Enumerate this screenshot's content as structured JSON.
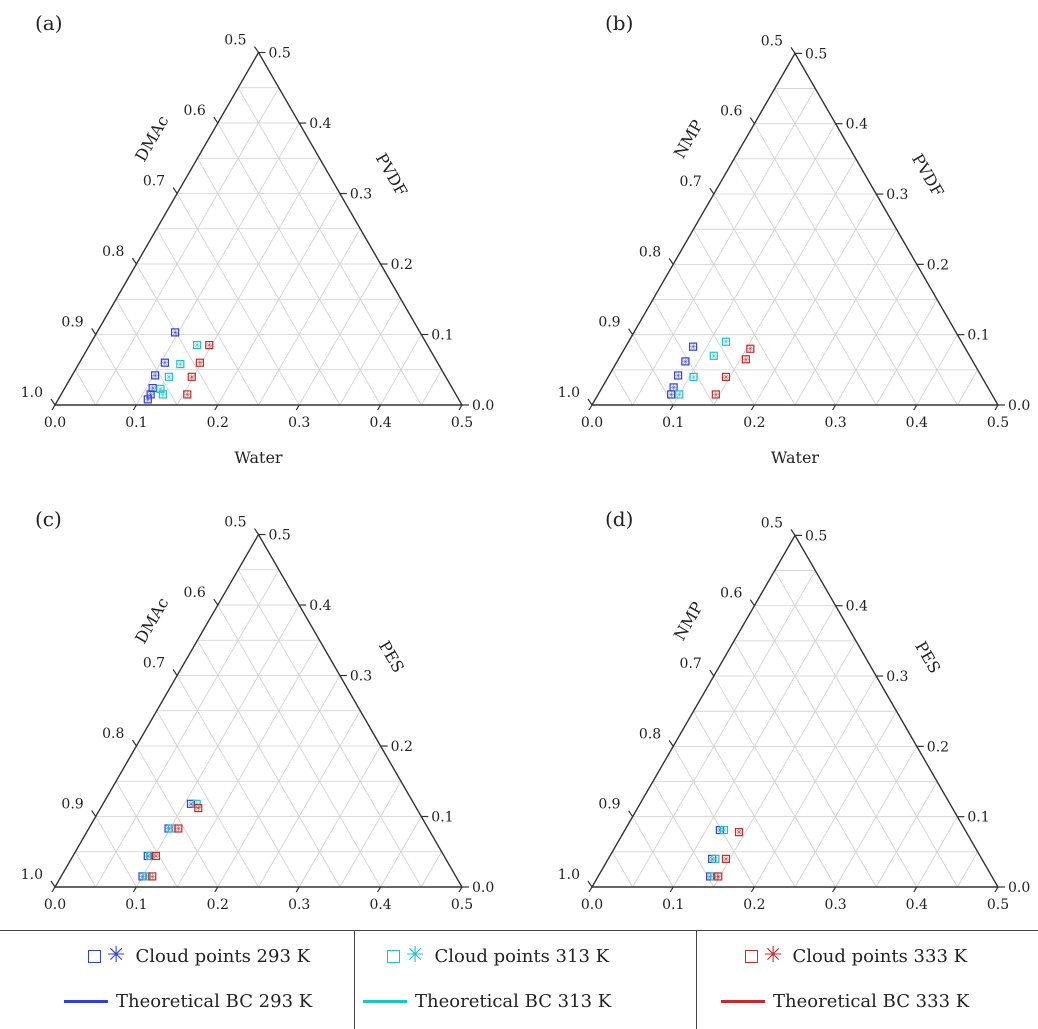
{
  "colors": {
    "t293": "#2f3fe0",
    "t313": "#1ec3c8",
    "t333": "#c8282a",
    "axis": "#333333",
    "grid": "#cfcfcf"
  },
  "chart_data": [
    {
      "panel": "(a)",
      "type": "scatter",
      "ternary": true,
      "left_label": "DMAc",
      "right_label": "PVDF",
      "bottom_label": "Water",
      "bottom_ticks": [
        "0.0",
        "0.1",
        "0.2",
        "0.3",
        "0.4",
        "0.5"
      ],
      "right_ticks": [
        "0.0",
        "0.1",
        "0.2",
        "0.3",
        "0.4",
        "0.5"
      ],
      "left_ticks": [
        "0.5",
        "0.6",
        "0.7",
        "0.8",
        "0.9",
        "1.0"
      ],
      "range": [
        0,
        0.5
      ],
      "series": [
        {
          "name": "Cloud points 293 K",
          "color_key": "t293",
          "points": [
            [
              0.096,
              0.103
            ],
            [
              0.105,
              0.06
            ],
            [
              0.102,
              0.042
            ],
            [
              0.108,
              0.024
            ],
            [
              0.11,
              0.015
            ],
            [
              0.11,
              0.008
            ]
          ]
        },
        {
          "name": "Cloud points 313 K",
          "color_key": "t313",
          "points": [
            [
              0.132,
              0.085
            ],
            [
              0.125,
              0.058
            ],
            [
              0.12,
              0.04
            ],
            [
              0.118,
              0.023
            ],
            [
              0.125,
              0.015
            ]
          ]
        },
        {
          "name": "Cloud points 333 K",
          "color_key": "t333",
          "points": [
            [
              0.147,
              0.085
            ],
            [
              0.148,
              0.06
            ],
            [
              0.148,
              0.04
            ],
            [
              0.155,
              0.015
            ]
          ]
        }
      ]
    },
    {
      "panel": "(b)",
      "type": "scatter",
      "ternary": true,
      "left_label": "NMP",
      "right_label": "PVDF",
      "bottom_label": "Water",
      "bottom_ticks": [
        "0.0",
        "0.1",
        "0.2",
        "0.3",
        "0.4",
        "0.5"
      ],
      "right_ticks": [
        "0.0",
        "0.1",
        "0.2",
        "0.3",
        "0.4",
        "0.5"
      ],
      "left_ticks": [
        "0.5",
        "0.6",
        "0.7",
        "0.8",
        "0.9",
        "1.0"
      ],
      "range": [
        0,
        0.5
      ],
      "series": [
        {
          "name": "Cloud points 293 K",
          "color_key": "t293",
          "points": [
            [
              0.083,
              0.083
            ],
            [
              0.084,
              0.062
            ],
            [
              0.085,
              0.042
            ],
            [
              0.09,
              0.015
            ],
            [
              0.088,
              0.025
            ]
          ]
        },
        {
          "name": "Cloud points 313 K",
          "color_key": "t313",
          "points": [
            [
              0.12,
              0.09
            ],
            [
              0.115,
              0.07
            ],
            [
              0.105,
              0.04
            ],
            [
              0.1,
              0.015
            ]
          ]
        },
        {
          "name": "Cloud points 333 K",
          "color_key": "t333",
          "points": [
            [
              0.155,
              0.08
            ],
            [
              0.157,
              0.065
            ],
            [
              0.145,
              0.04
            ],
            [
              0.145,
              0.015
            ]
          ]
        }
      ]
    },
    {
      "panel": "(c)",
      "type": "scatter",
      "ternary": true,
      "left_label": "DMAc",
      "right_label": "PES",
      "bottom_label": "Water",
      "bottom_ticks": [
        "0.0",
        "0.1",
        "0.2",
        "0.3",
        "0.4",
        "0.5"
      ],
      "right_ticks": [
        "0.0",
        "0.1",
        "0.2",
        "0.3",
        "0.4",
        "0.5"
      ],
      "left_ticks": [
        "0.5",
        "0.6",
        "0.7",
        "0.8",
        "0.9",
        "1.0"
      ],
      "range": [
        0,
        0.5
      ],
      "series": [
        {
          "name": "Cloud points 293 K",
          "color_key": "t293",
          "points": [
            [
              0.108,
              0.118
            ],
            [
              0.098,
              0.083
            ],
            [
              0.092,
              0.044
            ],
            [
              0.1,
              0.015
            ]
          ]
        },
        {
          "name": "Cloud points 313 K",
          "color_key": "t313",
          "points": [
            [
              0.115,
              0.118
            ],
            [
              0.102,
              0.083
            ],
            [
              0.095,
              0.044
            ],
            [
              0.105,
              0.015
            ]
          ]
        },
        {
          "name": "Cloud points 333 K",
          "color_key": "t333",
          "points": [
            [
              0.12,
              0.112
            ],
            [
              0.11,
              0.083
            ],
            [
              0.102,
              0.044
            ],
            [
              0.112,
              0.015
            ]
          ]
        }
      ]
    },
    {
      "panel": "(d)",
      "type": "scatter",
      "ternary": true,
      "left_label": "NMP",
      "right_label": "PES",
      "bottom_label": "Water",
      "bottom_ticks": [
        "0.0",
        "0.1",
        "0.2",
        "0.3",
        "0.4",
        "0.5"
      ],
      "right_ticks": [
        "0.0",
        "0.1",
        "0.2",
        "0.3",
        "0.4",
        "0.5"
      ],
      "left_ticks": [
        "0.5",
        "0.6",
        "0.7",
        "0.8",
        "0.9",
        "1.0"
      ],
      "range": [
        0,
        0.5
      ],
      "series": [
        {
          "name": "Cloud points 293 K",
          "color_key": "t293",
          "points": [
            [
              0.117,
              0.081
            ],
            [
              0.128,
              0.04
            ],
            [
              0.138,
              0.015
            ]
          ]
        },
        {
          "name": "Cloud points 313 K",
          "color_key": "t313",
          "points": [
            [
              0.122,
              0.081
            ],
            [
              0.132,
              0.04
            ],
            [
              0.143,
              0.015
            ]
          ]
        },
        {
          "name": "Cloud points 333 K",
          "color_key": "t333",
          "points": [
            [
              0.142,
              0.078
            ],
            [
              0.145,
              0.04
            ],
            [
              0.148,
              0.015
            ]
          ]
        }
      ]
    }
  ],
  "legend": {
    "cols": [
      {
        "cloud": "Cloud points 293 K",
        "theory": "Theoretical BC 293 K",
        "color_key": "t293"
      },
      {
        "cloud": "Cloud points 313 K",
        "theory": "Theoretical BC 313 K",
        "color_key": "t313"
      },
      {
        "cloud": "Cloud points 333 K",
        "theory": "Theoretical BC 333 K",
        "color_key": "t333"
      }
    ],
    "star_glyph": "✳"
  }
}
